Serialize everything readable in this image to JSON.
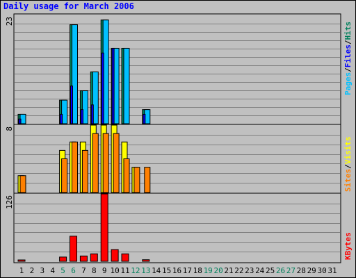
{
  "title": "Daily usage for March 2006",
  "colors": {
    "hits": "#00805c",
    "files": "#0000ff",
    "pages": "#00c0ff",
    "visits": "#ffff00",
    "sites": "#ff8000",
    "kbytes": "#ff0000",
    "weekend_label": "#00805c",
    "weekday_label": "#000000",
    "grid": "#808080",
    "plot_bg": "#c0c0c0"
  },
  "chart_data": [
    {
      "type": "bar",
      "panel": "hits-files-pages",
      "ymax_label": "23",
      "ylim": [
        0,
        23
      ],
      "legend": [
        "Pages",
        "Files",
        "Hits"
      ],
      "series": [
        {
          "name": "Hits",
          "values": [
            2,
            0,
            0,
            0,
            5,
            21,
            7,
            11,
            22,
            16,
            16,
            0,
            3,
            0,
            0,
            0,
            0,
            0,
            0,
            0,
            0,
            0,
            0,
            0,
            0,
            0,
            0,
            0,
            0,
            0,
            0
          ]
        },
        {
          "name": "Files",
          "values": [
            1,
            0,
            0,
            0,
            2,
            8,
            3,
            4,
            15,
            16,
            0,
            0,
            2,
            0,
            0,
            0,
            0,
            0,
            0,
            0,
            0,
            0,
            0,
            0,
            0,
            0,
            0,
            0,
            0,
            0,
            0
          ]
        },
        {
          "name": "Pages",
          "values": [
            2,
            0,
            0,
            0,
            5,
            21,
            7,
            11,
            22,
            16,
            16,
            0,
            3,
            0,
            0,
            0,
            0,
            0,
            0,
            0,
            0,
            0,
            0,
            0,
            0,
            0,
            0,
            0,
            0,
            0,
            0
          ]
        }
      ]
    },
    {
      "type": "bar",
      "panel": "visits-sites",
      "ymax_label": "8",
      "ylim": [
        0,
        8
      ],
      "legend": [
        "Sites",
        "Visits"
      ],
      "series": [
        {
          "name": "Visits",
          "values": [
            2,
            0,
            0,
            0,
            5,
            6,
            6,
            8,
            8,
            8,
            6,
            3,
            0,
            0,
            0,
            0,
            0,
            0,
            0,
            0,
            0,
            0,
            0,
            0,
            0,
            0,
            0,
            0,
            0,
            0,
            0
          ]
        },
        {
          "name": "Sites",
          "values": [
            2,
            0,
            0,
            0,
            4,
            6,
            5,
            7,
            7,
            7,
            4,
            3,
            3,
            0,
            0,
            0,
            0,
            0,
            0,
            0,
            0,
            0,
            0,
            0,
            0,
            0,
            0,
            0,
            0,
            0,
            0
          ]
        }
      ]
    },
    {
      "type": "bar",
      "panel": "kbytes",
      "ymax_label": "126",
      "ylim": [
        0,
        126
      ],
      "legend": [
        "KBytes"
      ],
      "series": [
        {
          "name": "KBytes",
          "values": [
            1,
            0,
            0,
            0,
            8,
            47,
            10,
            14,
            126,
            22,
            14,
            0,
            3,
            0,
            0,
            0,
            0,
            0,
            0,
            0,
            0,
            0,
            0,
            0,
            0,
            0,
            0,
            0,
            0,
            0,
            0
          ]
        }
      ]
    }
  ],
  "x_labels": [
    "1",
    "2",
    "3",
    "4",
    "5",
    "6",
    "7",
    "8",
    "9",
    "10",
    "11",
    "12",
    "13",
    "14",
    "15",
    "16",
    "17",
    "18",
    "19",
    "20",
    "21",
    "22",
    "23",
    "24",
    "25",
    "26",
    "27",
    "28",
    "29",
    "30",
    "31"
  ],
  "weekend_days": [
    4,
    5,
    11,
    12,
    18,
    19,
    25,
    26
  ]
}
